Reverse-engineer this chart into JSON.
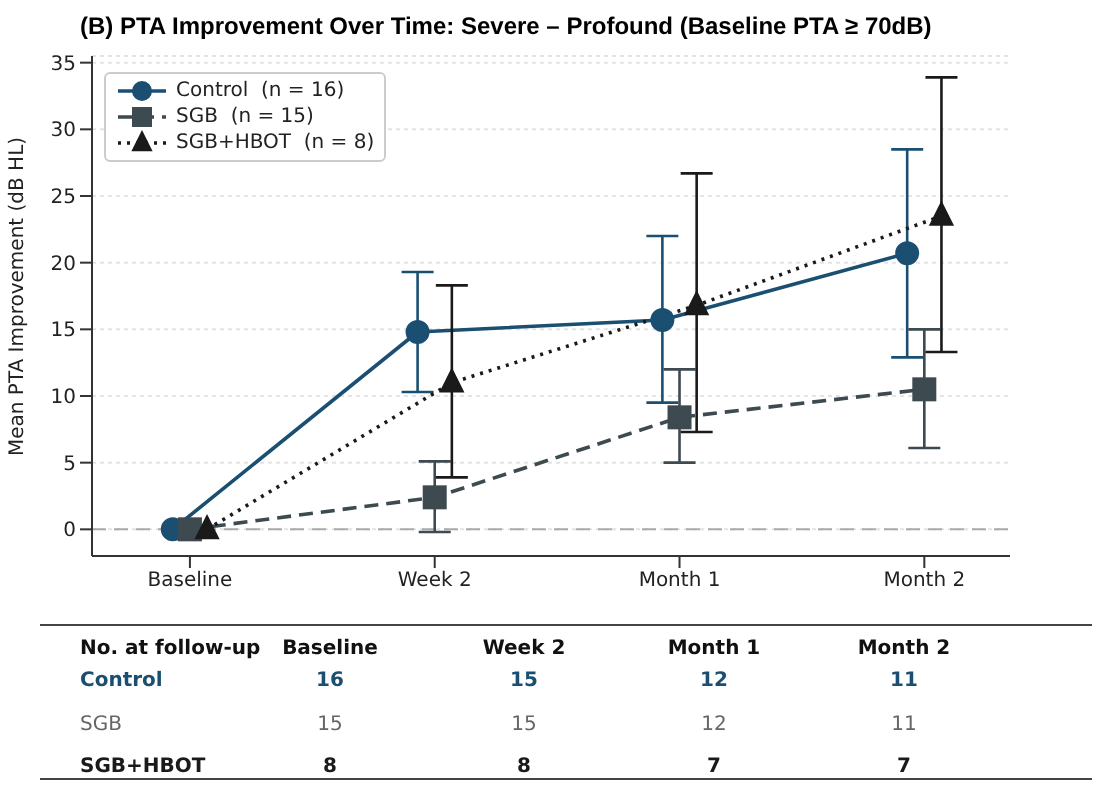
{
  "chart_data": {
    "type": "line",
    "title": "(B) PTA Improvement Over Time: Severe – Profound (Baseline PTA ≥ 70dB)",
    "ylabel": "Mean PTA Improvement (dB HL)",
    "categories": [
      "Baseline",
      "Week 2",
      "Month 1",
      "Month 2"
    ],
    "series": [
      {
        "name": "Control  (n = 16)",
        "color": "#1b4f72",
        "marker": "circle",
        "line_style": "solid",
        "values": [
          0,
          14.8,
          15.7,
          20.7
        ],
        "errors": [
          null,
          [
            10.3,
            19.3
          ],
          [
            9.5,
            22
          ],
          [
            12.9,
            28.5
          ]
        ]
      },
      {
        "name": "SGB  (n = 15)",
        "color": "#3d4a4f",
        "marker": "square",
        "line_style": "dashed",
        "values": [
          0,
          2.4,
          8.4,
          10.5
        ],
        "errors": [
          null,
          [
            -0.2,
            5.1
          ],
          [
            5,
            12
          ],
          [
            6.1,
            15
          ]
        ]
      },
      {
        "name": "SGB+HBOT  (n = 8)",
        "color": "#1a1a1a",
        "marker": "triangle",
        "line_style": "dotted",
        "values": [
          0,
          11,
          16.8,
          23.5
        ],
        "errors": [
          null,
          [
            3.9,
            18.3
          ],
          [
            7.3,
            26.7
          ],
          [
            13.3,
            33.9
          ]
        ]
      }
    ],
    "ylim": [
      -2,
      35.5
    ],
    "yticks": [
      0,
      5,
      10,
      15,
      20,
      25,
      30,
      35
    ],
    "grid": "y",
    "legend": "top left",
    "ref_lines": [
      {
        "axis": "y",
        "value": 0,
        "color": "#aaaaaa",
        "line_style": "dashed"
      }
    ],
    "annotations": [
      "No. at follow-up",
      "Baseline",
      "Week 2",
      "Month 1",
      "Month 2",
      "Control",
      "16",
      "15",
      "12",
      "11",
      "SGB",
      "15",
      "15",
      "12",
      "11",
      "SGB+HBOT",
      "8",
      "8",
      "7",
      "7"
    ]
  }
}
